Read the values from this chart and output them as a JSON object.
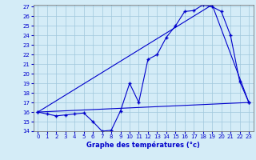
{
  "xlabel": "Graphe des températures (°c)",
  "hours": [
    0,
    1,
    2,
    3,
    4,
    5,
    6,
    7,
    8,
    9,
    10,
    11,
    12,
    13,
    14,
    15,
    16,
    17,
    18,
    19,
    20,
    21,
    22,
    23
  ],
  "temp_curve": [
    16.0,
    15.8,
    15.6,
    15.7,
    15.8,
    15.9,
    15.0,
    14.0,
    14.1,
    16.1,
    19.0,
    17.0,
    21.5,
    22.0,
    23.8,
    25.0,
    26.5,
    26.6,
    27.2,
    27.0,
    26.5,
    24.0,
    19.2,
    17.0
  ],
  "trend_line_x": [
    0,
    19,
    23
  ],
  "trend_line_y": [
    16.0,
    27.2,
    17.0
  ],
  "flat_line_x": [
    0,
    23
  ],
  "flat_line_y": [
    16.0,
    17.0
  ],
  "ylim": [
    14,
    27
  ],
  "xlim": [
    -0.5,
    23.5
  ],
  "yticks": [
    14,
    15,
    16,
    17,
    18,
    19,
    20,
    21,
    22,
    23,
    24,
    25,
    26,
    27
  ],
  "xticks": [
    0,
    1,
    2,
    3,
    4,
    5,
    6,
    7,
    8,
    9,
    10,
    11,
    12,
    13,
    14,
    15,
    16,
    17,
    18,
    19,
    20,
    21,
    22,
    23
  ],
  "line_color": "#0000cc",
  "marker": "+",
  "bg_color": "#d4ecf7",
  "grid_color": "#a0c8dc"
}
